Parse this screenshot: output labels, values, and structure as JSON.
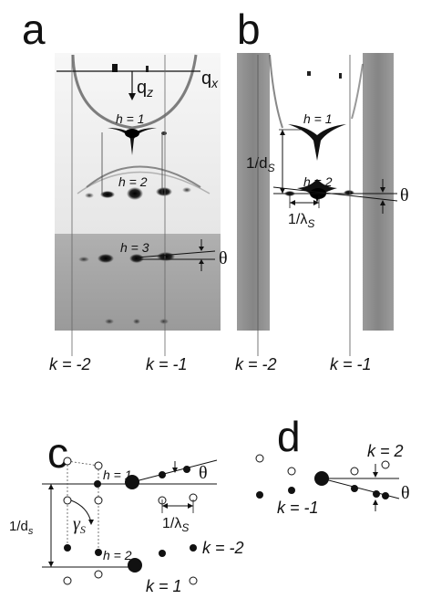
{
  "panels": {
    "a": {
      "letter": "a",
      "axis_qx": "q",
      "axis_qx_sub": "x",
      "axis_qz": "q",
      "axis_qz_sub": "z",
      "h1": "h = 1",
      "h2": "h = 2",
      "h3": "h = 3",
      "theta": "θ",
      "k_left": "k = -2",
      "k_right": "k = -1"
    },
    "b": {
      "letter": "b",
      "h1": "h = 1",
      "h2": "h = 2",
      "ds": "1/d",
      "ds_sub": "S",
      "lambda": "1/λ",
      "lambda_sub": "S",
      "theta": "θ",
      "k_left": "k = -2",
      "k_right": "k = -1"
    },
    "c": {
      "letter": "c",
      "h1": "h = 1",
      "h2": "h = 2",
      "theta": "θ",
      "ds": "1/d",
      "ds_sub": "s",
      "gamma": "γ",
      "gamma_sub": "S",
      "lambda": "1/λ",
      "lambda_sub": "S",
      "k_m2": "k = -2",
      "k_1": "k = 1"
    },
    "d": {
      "letter": "d",
      "k_2": "k = 2",
      "k_m1": "k = -1",
      "theta": "θ"
    }
  },
  "colors": {
    "ink": "#111111",
    "panel_a_light": "#f1f1f1",
    "panel_a_dark": "#a3a3a3",
    "panel_b_strip": "#8f8f8f"
  }
}
